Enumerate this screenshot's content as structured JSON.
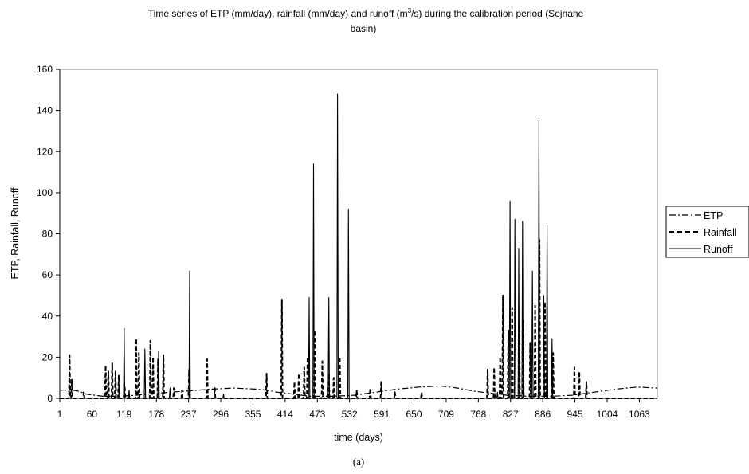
{
  "chart_data": {
    "type": "line",
    "title_main": "Time series of ETP (mm/day), rainfall (mm/day) and runoff (m",
    "title_sup": "3",
    "title_rest": "/s) during the calibration period (Sejnane",
    "title_line2": "basin)",
    "xlabel": "time (days)",
    "ylabel": "ETP, Rainfall, Runoff",
    "xlim": [
      1,
      1096
    ],
    "ylim": [
      0,
      160
    ],
    "ytick_labels": [
      "0",
      "20",
      "40",
      "60",
      "80",
      "100",
      "120",
      "140",
      "160"
    ],
    "xtick_labels": [
      "1",
      "60",
      "119",
      "178",
      "237",
      "296",
      "355",
      "414",
      "473",
      "532",
      "591",
      "650",
      "709",
      "768",
      "827",
      "886",
      "945",
      "1004",
      "1063"
    ],
    "legend_position": "right",
    "caption": "(a)",
    "series": [
      {
        "name": "ETP",
        "style": "dash-dot",
        "points": [
          [
            1,
            4
          ],
          [
            25,
            4
          ],
          [
            35,
            3.5
          ],
          [
            50,
            2
          ],
          [
            80,
            1
          ],
          [
            110,
            1
          ],
          [
            140,
            1.5
          ],
          [
            180,
            2.5
          ],
          [
            230,
            3.5
          ],
          [
            280,
            4.5
          ],
          [
            320,
            5
          ],
          [
            360,
            4.5
          ],
          [
            380,
            4
          ],
          [
            400,
            3
          ],
          [
            430,
            2
          ],
          [
            460,
            1
          ],
          [
            500,
            1
          ],
          [
            540,
            1.5
          ],
          [
            580,
            3
          ],
          [
            620,
            4.5
          ],
          [
            660,
            5.5
          ],
          [
            700,
            6
          ],
          [
            730,
            5
          ],
          [
            760,
            3.5
          ],
          [
            790,
            2.5
          ],
          [
            820,
            1.5
          ],
          [
            860,
            1
          ],
          [
            900,
            1
          ],
          [
            940,
            1.5
          ],
          [
            980,
            3
          ],
          [
            1020,
            4.5
          ],
          [
            1060,
            5.5
          ],
          [
            1096,
            5
          ]
        ]
      },
      {
        "name": "Rainfall",
        "style": "dashed",
        "peaks": [
          [
            19,
            21
          ],
          [
            23,
            9
          ],
          [
            45,
            3
          ],
          [
            85,
            16
          ],
          [
            90,
            13
          ],
          [
            97,
            17
          ],
          [
            103,
            13
          ],
          [
            109,
            11
          ],
          [
            120,
            6
          ],
          [
            141,
            29
          ],
          [
            146,
            22
          ],
          [
            167,
            28
          ],
          [
            172,
            20
          ],
          [
            181,
            19
          ],
          [
            191,
            21
          ],
          [
            210,
            5
          ],
          [
            225,
            4
          ],
          [
            238,
            14
          ],
          [
            271,
            19
          ],
          [
            285,
            5
          ],
          [
            380,
            12
          ],
          [
            408,
            48
          ],
          [
            431,
            8
          ],
          [
            439,
            12
          ],
          [
            449,
            15
          ],
          [
            455,
            20
          ],
          [
            468,
            33
          ],
          [
            482,
            18
          ],
          [
            494,
            12
          ],
          [
            503,
            10
          ],
          [
            514,
            20
          ],
          [
            545,
            4
          ],
          [
            570,
            5
          ],
          [
            590,
            8
          ],
          [
            615,
            3
          ],
          [
            664,
            3
          ],
          [
            785,
            14
          ],
          [
            797,
            15
          ],
          [
            808,
            20
          ],
          [
            813,
            50
          ],
          [
            823,
            33
          ],
          [
            830,
            44
          ],
          [
            843,
            35
          ],
          [
            850,
            38
          ],
          [
            863,
            27
          ],
          [
            872,
            45
          ],
          [
            880,
            77
          ],
          [
            890,
            47
          ],
          [
            905,
            22
          ],
          [
            944,
            15
          ],
          [
            953,
            13
          ],
          [
            966,
            8
          ]
        ]
      },
      {
        "name": "Runoff",
        "style": "solid",
        "peaks": [
          [
            110,
            6
          ],
          [
            119,
            34
          ],
          [
            128,
            4
          ],
          [
            157,
            24
          ],
          [
            182,
            23
          ],
          [
            203,
            5
          ],
          [
            239,
            62
          ],
          [
            301,
            2
          ],
          [
            458,
            49
          ],
          [
            466,
            114
          ],
          [
            494,
            49
          ],
          [
            510,
            148
          ],
          [
            530,
            92
          ],
          [
            803,
            3
          ],
          [
            826,
            96
          ],
          [
            835,
            87
          ],
          [
            842,
            73
          ],
          [
            849,
            86
          ],
          [
            867,
            62
          ],
          [
            879,
            135
          ],
          [
            888,
            50
          ],
          [
            894,
            84
          ],
          [
            903,
            29
          ]
        ]
      }
    ]
  }
}
